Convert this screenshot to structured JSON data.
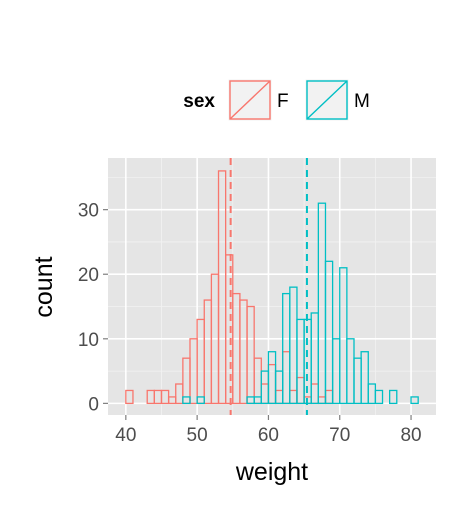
{
  "chart_data": {
    "type": "histogram",
    "xlabel": "weight",
    "ylabel": "count",
    "xlim": [
      37.5,
      83.5
    ],
    "ylim": [
      -1.8,
      38
    ],
    "xticks": [
      40,
      50,
      60,
      70,
      80
    ],
    "yticks": [
      0,
      10,
      20,
      30
    ],
    "grid": true,
    "legend": {
      "title": "sex",
      "position": "top",
      "entries": [
        "F",
        "M"
      ]
    },
    "bin_width": 1,
    "bin_start": 39,
    "series": [
      {
        "name": "F",
        "color": "#F8766D",
        "mean": 54.7,
        "counts": [
          0,
          2,
          0,
          0,
          2,
          2,
          2,
          1,
          3,
          7,
          10,
          13,
          16,
          20,
          36,
          23,
          17,
          16,
          15,
          7,
          3,
          6,
          2,
          8,
          2,
          4,
          1,
          3,
          1,
          2,
          0,
          0,
          0,
          0,
          0,
          0,
          0,
          0,
          0,
          0,
          0,
          0,
          0
        ]
      },
      {
        "name": "M",
        "color": "#00BFC4",
        "mean": 65.4,
        "counts": [
          0,
          0,
          0,
          0,
          0,
          0,
          0,
          0,
          0,
          1,
          0,
          1,
          0,
          0,
          0,
          0,
          0,
          0,
          1,
          1,
          5,
          8,
          5,
          17,
          18,
          13,
          13,
          14,
          31,
          22,
          10,
          21,
          10,
          7,
          8,
          3,
          2,
          0,
          2,
          0,
          0,
          1,
          0
        ]
      }
    ]
  }
}
